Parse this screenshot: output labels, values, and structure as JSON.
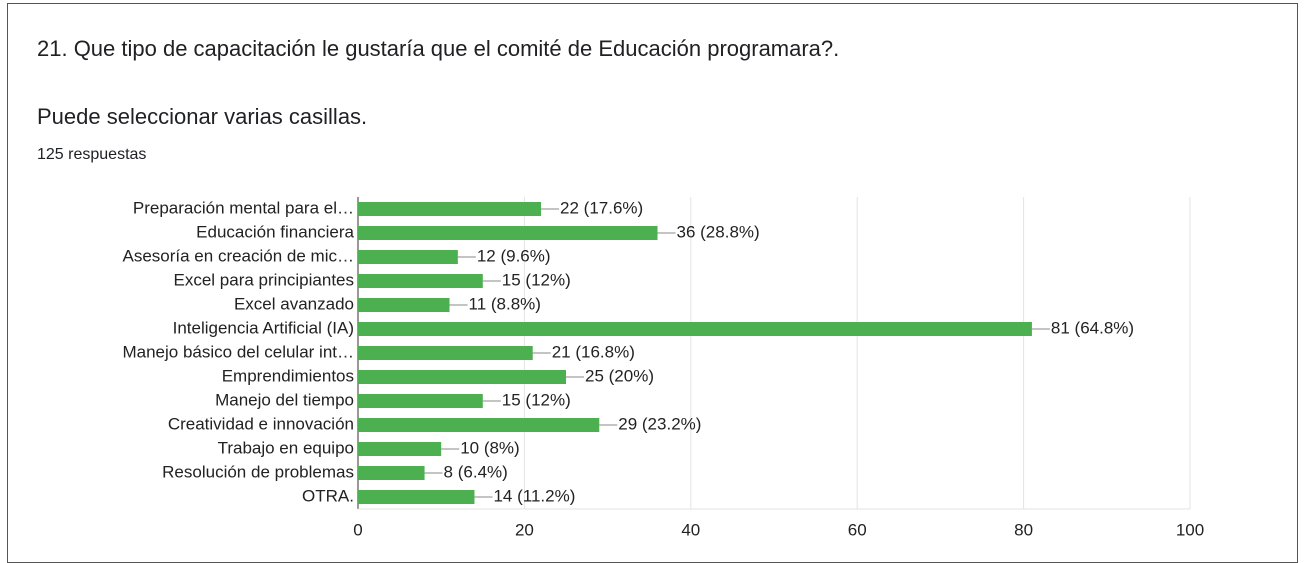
{
  "chart_data": {
    "type": "bar",
    "orientation": "horizontal",
    "title": "21. Que tipo de capacitación le gustaría que el comité de Educación programara?.",
    "subtitle": "Puede seleccionar varias casillas.",
    "annotation": "125 respuestas",
    "categories": [
      "Preparación mental para el…",
      "Educación financiera",
      "Asesoría en creación de mic…",
      "Excel para principiantes",
      "Excel avanzado",
      "Inteligencia Artificial (IA)",
      "Manejo básico del celular int…",
      "Emprendimientos",
      "Manejo del tiempo",
      "Creatividad e innovación",
      "Trabajo en equipo",
      "Resolución de problemas",
      "OTRA."
    ],
    "values": [
      22,
      36,
      12,
      15,
      11,
      81,
      21,
      25,
      15,
      29,
      10,
      8,
      14
    ],
    "value_labels": [
      "22 (17.6%)",
      "36 (28.8%)",
      "12 (9.6%)",
      "15 (12%)",
      "11 (8.8%)",
      "81 (64.8%)",
      "21 (16.8%)",
      "25 (20%)",
      "15 (12%)",
      "29 (23.2%)",
      "10 (8%)",
      "8 (6.4%)",
      "14 (11.2%)"
    ],
    "color": "#4caf50",
    "xlim": [
      0,
      100
    ],
    "xticks": [
      0,
      20,
      40,
      60,
      80,
      100
    ],
    "grid": true
  }
}
